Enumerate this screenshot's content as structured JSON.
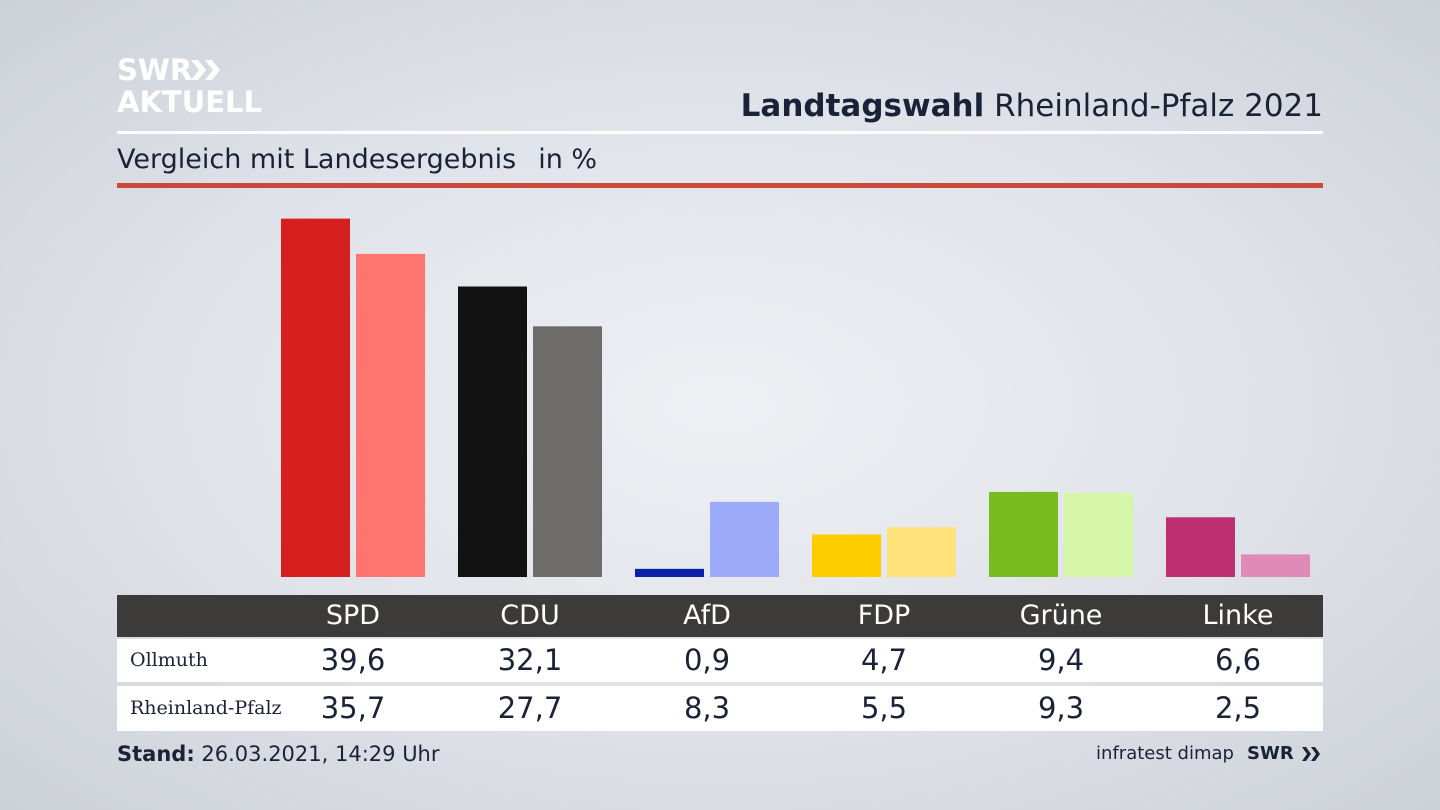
{
  "brand": {
    "logo_line1": "SWR",
    "logo_line2": "AKTUELL",
    "footer_logo": "SWR"
  },
  "header": {
    "title_bold": "Landtagswahl",
    "title_rest": "Rheinland-Pfalz 2021"
  },
  "subtitle": {
    "text": "Vergleich mit Landesergebnis",
    "unit": "in %"
  },
  "colors": {
    "accent_rule": "#c94a3a",
    "table_header_bg": "#3c3b3a"
  },
  "chart_data": {
    "type": "bar",
    "categories": [
      "SPD",
      "CDU",
      "AfD",
      "FDP",
      "Grüne",
      "Linke"
    ],
    "series": [
      {
        "name": "Ollmuth",
        "values": [
          39.6,
          32.1,
          0.9,
          4.7,
          9.4,
          6.6
        ],
        "value_labels": [
          "39,6",
          "32,1",
          "0,9",
          "4,7",
          "9,4",
          "6,6"
        ],
        "colors": [
          "#d62020",
          "#121212",
          "#0b1fa8",
          "#ffcc00",
          "#78bb1e",
          "#be2e72"
        ]
      },
      {
        "name": "Rheinland-Pfalz",
        "values": [
          35.7,
          27.7,
          8.3,
          5.5,
          9.3,
          2.5
        ],
        "value_labels": [
          "35,7",
          "27,7",
          "8,3",
          "5,5",
          "9,3",
          "2,5"
        ],
        "colors": [
          "#ff746e",
          "#6d6c6b",
          "#9caafa",
          "#ffe27a",
          "#d5f5a9",
          "#e08ab8"
        ]
      }
    ],
    "ylim": [
      0,
      40
    ]
  },
  "footer": {
    "stand_label": "Stand:",
    "stand_value": "26.03.2021, 14:29 Uhr",
    "source": "infratest dimap"
  }
}
